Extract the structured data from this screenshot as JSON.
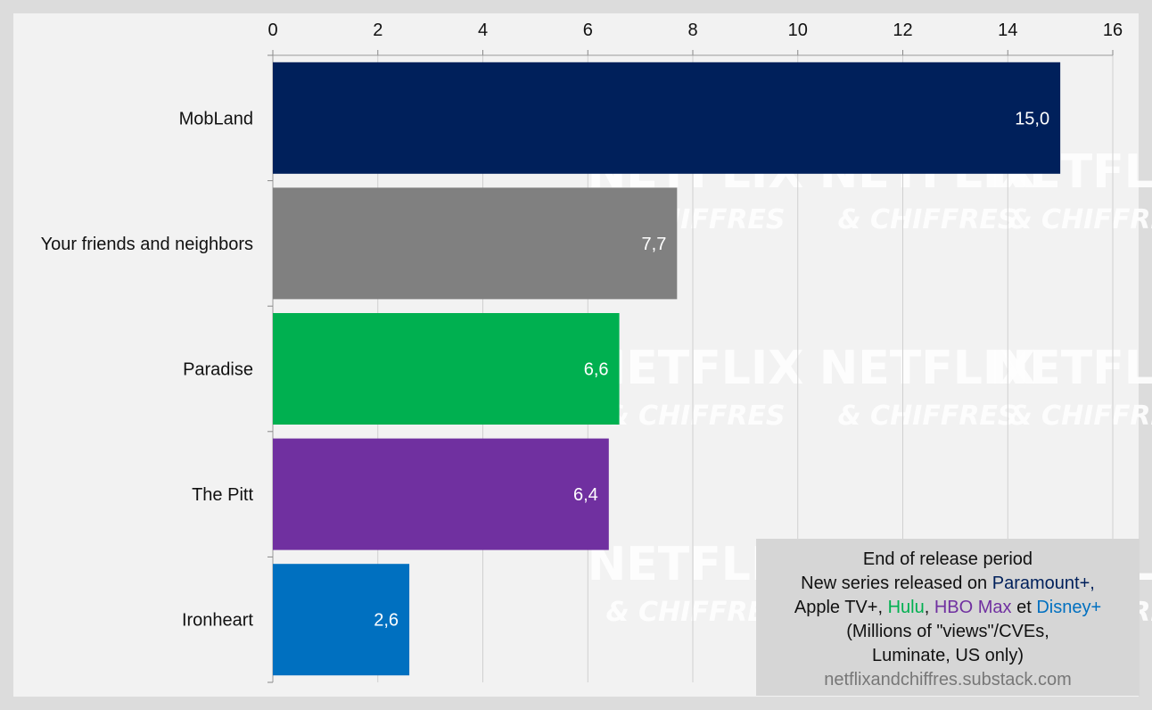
{
  "chart_data": {
    "type": "bar",
    "orientation": "horizontal",
    "categories": [
      "MobLand",
      "Your friends and neighbors",
      "Paradise",
      "The Pitt",
      "Ironheart"
    ],
    "values": [
      15.0,
      7.7,
      6.6,
      6.4,
      2.6
    ],
    "value_labels": [
      "15,0",
      "7,7",
      "6,6",
      "6,4",
      "2,6"
    ],
    "bar_colors": [
      "#00205b",
      "#808080",
      "#00b050",
      "#7030a0",
      "#0070c0"
    ],
    "xlim": [
      0,
      16
    ],
    "xticks": [
      "0",
      "2",
      "4",
      "6",
      "8",
      "10",
      "12",
      "14",
      "16"
    ],
    "xaxis_position": "top",
    "grid": true,
    "legend_position": "bottom-right",
    "watermark": [
      "NETFLIX",
      "& CHIFFRES"
    ]
  },
  "legend": {
    "line1": "End of release period",
    "line2_prefix": "New series released on ",
    "platform1": "Paramount+,",
    "line3_prefix": "Apple TV+, ",
    "platform2": "Hulu",
    "sep1": ", ",
    "platform3": "HBO Max",
    "et": " et ",
    "platform4": "Disney+",
    "line4": "(Millions of \"views\"/CVEs,",
    "line5": "Luminate, US only)",
    "source": "netflixandchiffres.substack.com"
  },
  "colors": {
    "page_background": "#dcdcdc",
    "plot_background": "#f2f2f2",
    "paramount": "#00205b",
    "hulu": "#00b050",
    "hbo": "#7030a0",
    "disney": "#0070c0"
  }
}
